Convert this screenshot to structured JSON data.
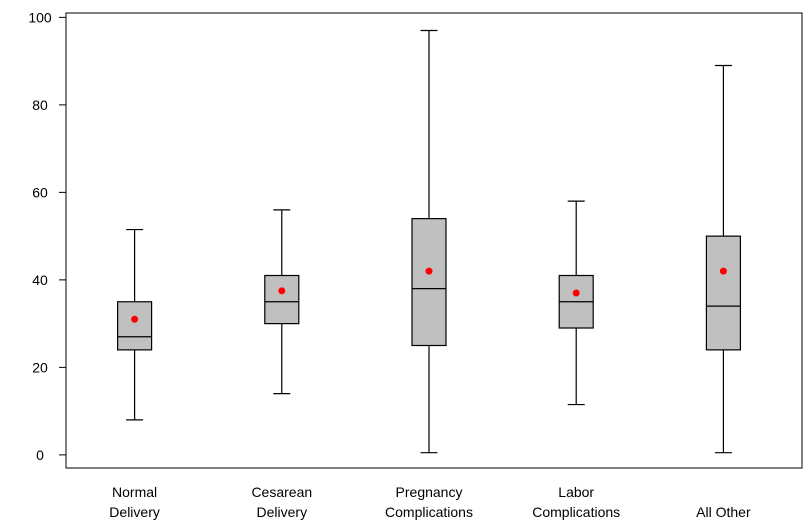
{
  "chart_data": {
    "type": "box",
    "categories": [
      {
        "lines": [
          "Normal",
          "Delivery"
        ]
      },
      {
        "lines": [
          "Cesarean",
          "Delivery"
        ]
      },
      {
        "lines": [
          "Pregnancy",
          "Complications"
        ]
      },
      {
        "lines": [
          "Labor",
          "Complications"
        ]
      },
      {
        "lines": [
          "All Other"
        ]
      }
    ],
    "boxes": [
      {
        "min": 8,
        "q1": 24,
        "median": 27,
        "q3": 35,
        "max": 51.5,
        "mean": 31
      },
      {
        "min": 14,
        "q1": 30,
        "median": 35,
        "q3": 41,
        "max": 56,
        "mean": 37.5
      },
      {
        "min": 0.5,
        "q1": 25,
        "median": 38,
        "q3": 54,
        "max": 97,
        "mean": 42
      },
      {
        "min": 11.5,
        "q1": 29,
        "median": 35,
        "q3": 41,
        "max": 58,
        "mean": 37
      },
      {
        "min": 0.5,
        "q1": 24,
        "median": 34,
        "q3": 50,
        "max": 89,
        "mean": 42
      }
    ],
    "y_ticks": [
      0,
      20,
      40,
      60,
      80,
      100
    ],
    "ylim": [
      -3,
      101
    ],
    "title": "",
    "xlabel": "",
    "ylabel": "",
    "grid": false,
    "legend": "none",
    "colors": {
      "box_fill": "#c0c0c0",
      "stroke": "#000000",
      "mean_marker": "#ff0000"
    }
  }
}
